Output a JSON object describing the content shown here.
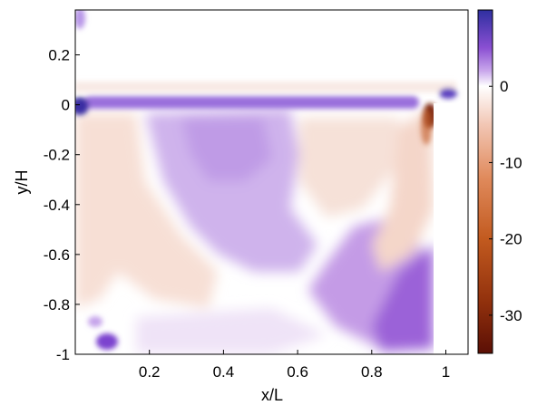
{
  "chart_data": {
    "type": "heatmap",
    "title": "",
    "xlabel": "x/L",
    "ylabel": "y/H",
    "xlim": [
      0.0,
      1.06
    ],
    "ylim": [
      -1.0,
      0.38
    ],
    "xticks": [
      0.2,
      0.4,
      0.6,
      0.8,
      1.0
    ],
    "xtick_labels": [
      "0.2",
      "0.4",
      "0.6",
      "0.8",
      "1"
    ],
    "yticks": [
      0.2,
      0.0,
      -0.2,
      -0.4,
      -0.6,
      -0.8,
      -1.0
    ],
    "ytick_labels": [
      "0.2",
      "0",
      "-0.2",
      "-0.4",
      "-0.6",
      "-0.8",
      "-1"
    ],
    "colorbar": {
      "range": [
        -35,
        10
      ],
      "ticks": [
        0,
        -10,
        -20,
        -30
      ],
      "tick_labels": [
        "0",
        "-10",
        "-20",
        "-30"
      ],
      "colors": [
        {
          "value": 10,
          "color": "#2e2fa0"
        },
        {
          "value": 5,
          "color": "#8a4fd2"
        },
        {
          "value": 2,
          "color": "#caa8ec"
        },
        {
          "value": 0,
          "color": "#ffffff"
        },
        {
          "value": -5,
          "color": "#f2c7b5"
        },
        {
          "value": -12,
          "color": "#e08a5c"
        },
        {
          "value": -20,
          "color": "#c25a1f"
        },
        {
          "value": -28,
          "color": "#93320d"
        },
        {
          "value": -35,
          "color": "#5b0f05"
        }
      ]
    },
    "field_regions": [
      {
        "region": "upper region y>0.05",
        "level": 0.5
      },
      {
        "region": "shear layer y≈0",
        "level": 4
      },
      {
        "region": "central recirculation",
        "level": 3.5
      },
      {
        "region": "bottom-right corner",
        "level": 7
      },
      {
        "region": "left wall region",
        "level": -1.5
      },
      {
        "region": "right-center band",
        "level": -2
      },
      {
        "region": "corner near x=0.97,y=0",
        "level": -28
      },
      {
        "region": "leading edge x=0,y=0",
        "level": 9
      },
      {
        "region": "trailing corner x=1.02,y=0.02",
        "level": 8
      },
      {
        "region": "bottom-left x=0.12,y=-0.93",
        "level": 6
      }
    ]
  }
}
